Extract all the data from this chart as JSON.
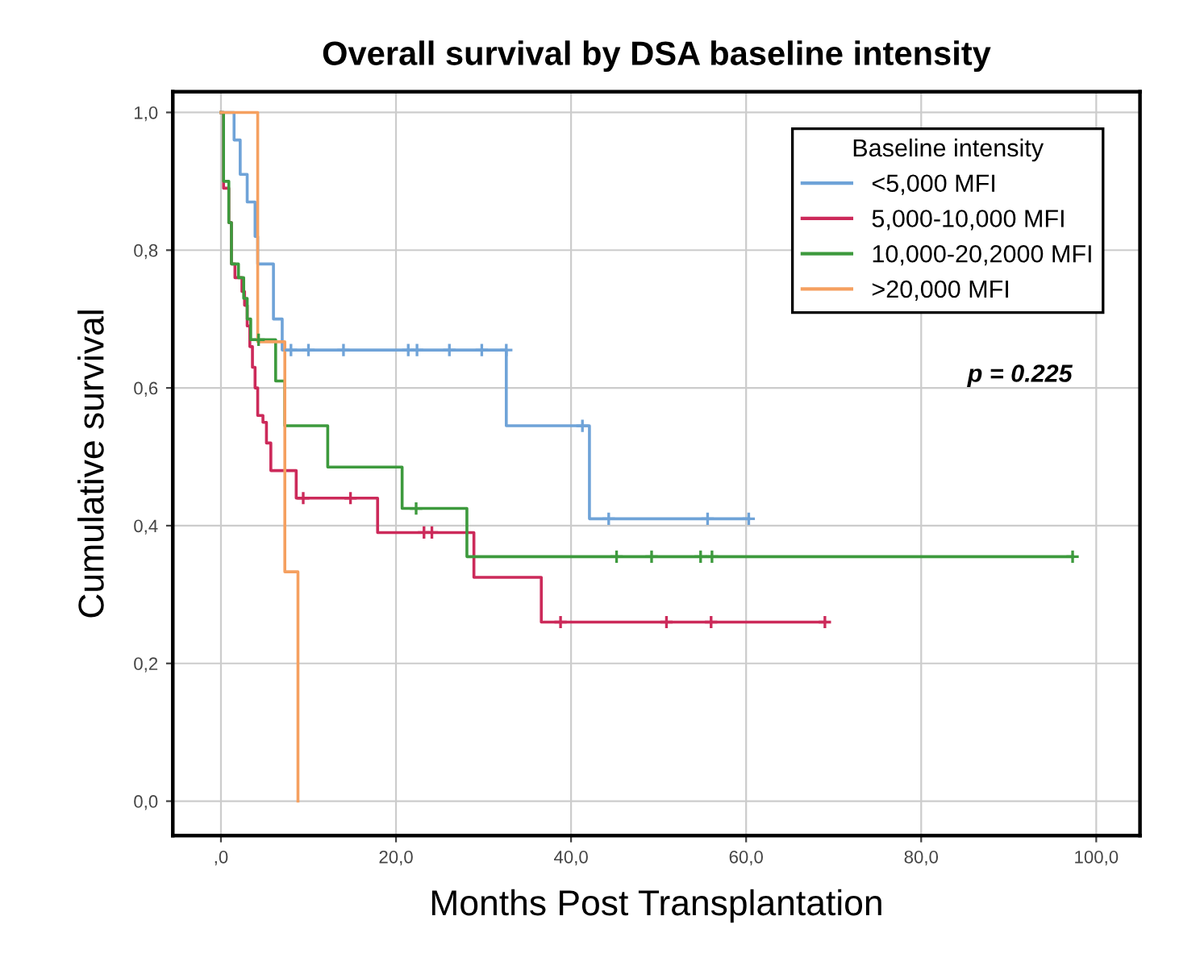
{
  "chart_data": {
    "type": "step",
    "title": "Overall survival by DSA baseline intensity",
    "xlabel": "Months Post Transplantation",
    "ylabel": "Cumulative survival",
    "legend_title": "Baseline intensity",
    "legend": "top right",
    "grid": true,
    "xlim": [
      -5.5,
      105
    ],
    "ylim": [
      -0.05,
      1.03
    ],
    "xticks": [
      {
        "value": 0,
        "label": ",0"
      },
      {
        "value": 20,
        "label": "20,0"
      },
      {
        "value": 40,
        "label": "40,0"
      },
      {
        "value": 60,
        "label": "60,0"
      },
      {
        "value": 80,
        "label": "80,0"
      },
      {
        "value": 100,
        "label": "100,0"
      }
    ],
    "yticks": [
      {
        "value": 0,
        "label": "0,0"
      },
      {
        "value": 0.2,
        "label": "0,2"
      },
      {
        "value": 0.4,
        "label": "0,4"
      },
      {
        "value": 0.6,
        "label": "0,6"
      },
      {
        "value": 0.8,
        "label": "0,8"
      },
      {
        "value": 1,
        "label": "1,0"
      }
    ],
    "annotations": [
      "p = 0.225"
    ],
    "series": [
      {
        "name": "<5,000 MFI",
        "color": "#6fa3d8",
        "x": [
          0,
          1.5,
          2.2,
          3.0,
          3.9,
          4.2,
          6.0,
          7.0,
          32.6,
          42.1,
          60.3
        ],
        "values": [
          1,
          0.96,
          0.91,
          0.87,
          0.82,
          0.78,
          0.7,
          0.655,
          0.545,
          0.41,
          0.41
        ]
      },
      {
        "name": "5,000-10,000 MFI",
        "color": "#cc2a5a",
        "x": [
          0,
          0.3,
          0.9,
          1.2,
          1.6,
          2.4,
          2.7,
          3.0,
          3.3,
          3.6,
          3.9,
          4.2,
          4.8,
          5.2,
          5.7,
          8.6,
          17.9,
          28.9,
          36.6,
          69.0
        ],
        "values": [
          1,
          0.89,
          0.84,
          0.78,
          0.76,
          0.74,
          0.72,
          0.69,
          0.66,
          0.63,
          0.6,
          0.56,
          0.55,
          0.52,
          0.48,
          0.44,
          0.39,
          0.325,
          0.26,
          0.26
        ]
      },
      {
        "name": "10,000-20,2000 MFI",
        "color": "#3d9a3d",
        "x": [
          0,
          0.3,
          0.9,
          1.2,
          2.0,
          2.6,
          3.0,
          3.4,
          6.25,
          7.3,
          12.2,
          20.7,
          28.1,
          97.3
        ],
        "values": [
          1,
          0.9,
          0.84,
          0.78,
          0.76,
          0.73,
          0.7,
          0.67,
          0.61,
          0.545,
          0.485,
          0.425,
          0.355,
          0.355
        ]
      },
      {
        "name": ">20,000 MFI",
        "color": "#f5a060",
        "x": [
          0,
          4.2,
          7.3,
          8.8
        ],
        "values": [
          1,
          0.667,
          0.333,
          0
        ]
      },
      {
        "type": "scatter",
        "marker": "cross",
        "color": "#6fa3d8",
        "x": [
          8.0,
          10.0,
          14.0,
          21.4,
          22.4,
          26.1,
          29.8,
          32.6,
          41.3,
          44.3,
          55.6,
          60.3
        ],
        "values": [
          0.655,
          0.655,
          0.655,
          0.655,
          0.655,
          0.655,
          0.655,
          0.655,
          0.545,
          0.41,
          0.41,
          0.41
        ]
      },
      {
        "type": "scatter",
        "marker": "cross",
        "color": "#cc2a5a",
        "x": [
          9.4,
          14.8,
          23.2,
          24.1,
          38.8,
          50.9,
          56.0,
          69.0
        ],
        "values": [
          0.44,
          0.44,
          0.39,
          0.39,
          0.26,
          0.26,
          0.26,
          0.26
        ]
      },
      {
        "type": "scatter",
        "marker": "cross",
        "color": "#3d9a3d",
        "x": [
          4.3,
          22.3,
          45.2,
          49.2,
          54.8,
          56.1,
          97.3
        ],
        "values": [
          0.67,
          0.425,
          0.355,
          0.355,
          0.355,
          0.355,
          0.355
        ]
      }
    ]
  }
}
